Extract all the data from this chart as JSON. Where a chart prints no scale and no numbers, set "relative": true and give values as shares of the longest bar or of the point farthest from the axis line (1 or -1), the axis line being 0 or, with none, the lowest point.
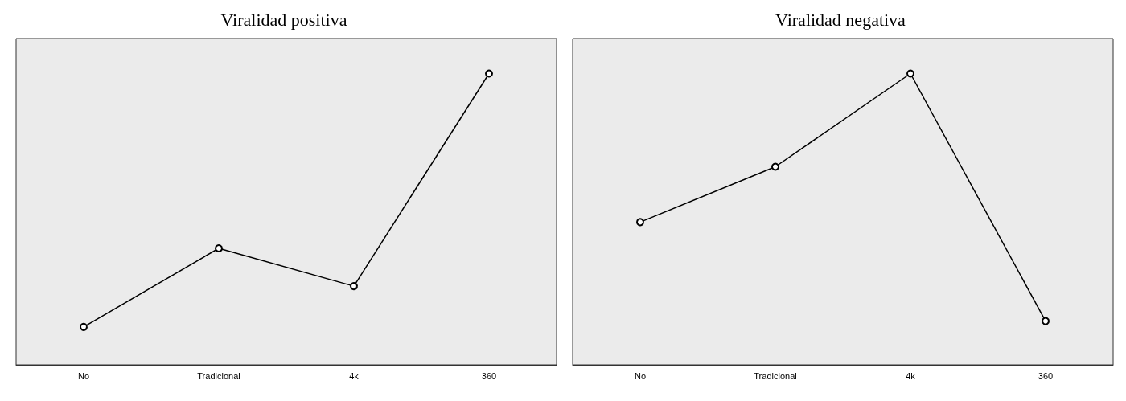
{
  "chart_data": [
    {
      "type": "line",
      "title": "Viralidad positiva",
      "categories": [
        "No",
        "Tradicional",
        "4k",
        "360"
      ],
      "relative": true,
      "marker": "circle",
      "line_style": "solid",
      "grid": false,
      "series": [
        {
          "color": "#000000",
          "values": [
            0.13,
            0.4,
            0.27,
            1
          ]
        }
      ]
    },
    {
      "type": "line",
      "title": "Viralidad negativa",
      "categories": [
        "No",
        "Tradicional",
        "4k",
        "360"
      ],
      "relative": true,
      "marker": "circle",
      "line_style": "solid",
      "grid": false,
      "series": [
        {
          "color": "#000000",
          "values": [
            0.49,
            0.68,
            1,
            0.15
          ]
        }
      ]
    }
  ]
}
